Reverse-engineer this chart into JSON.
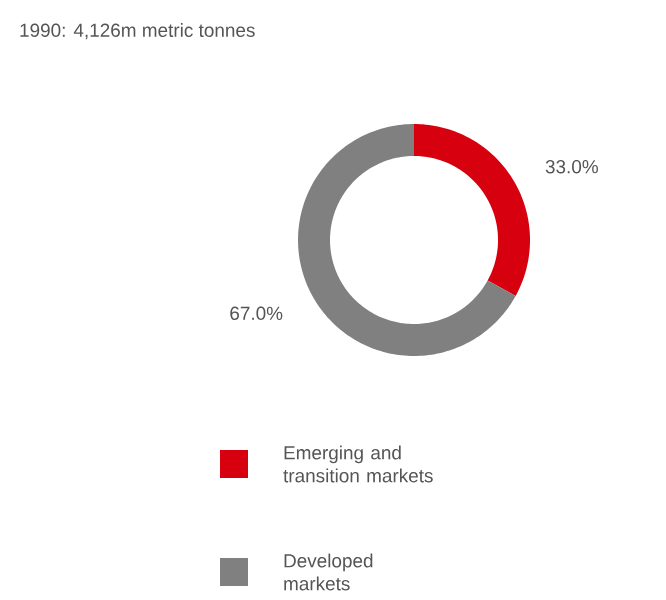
{
  "chart_data": {
    "type": "donut",
    "title": "1990: 4,126m metric tonnes",
    "categories": [
      "Emerging and transition markets",
      "Developed markets"
    ],
    "values": [
      33.0,
      67.0
    ],
    "value_labels": [
      "33.0%",
      "67.0%"
    ],
    "colors": [
      "#d7000f",
      "#808080"
    ],
    "legend": "bottom"
  }
}
